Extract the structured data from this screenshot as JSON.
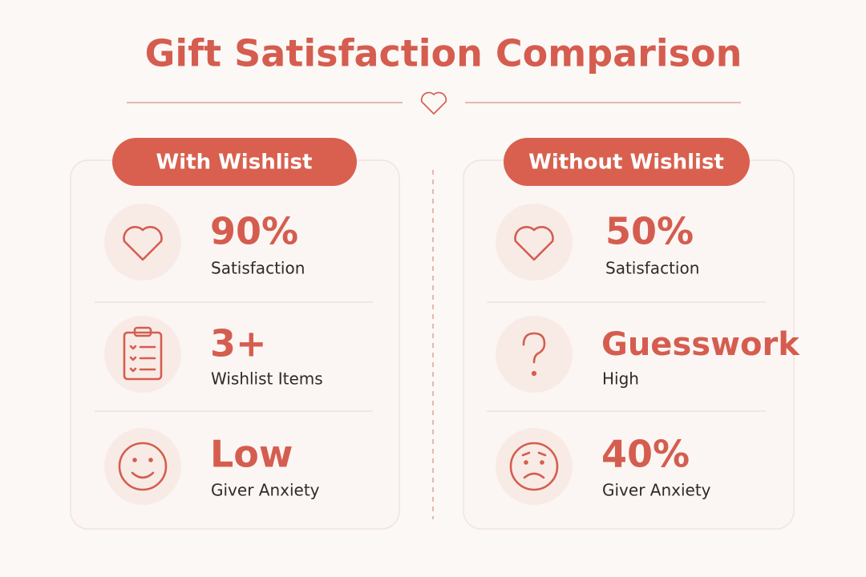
{
  "header": {
    "title": "Gift Satisfaction Comparison"
  },
  "panels": [
    {
      "title": "With Wishlist",
      "rows": [
        {
          "value": "90%",
          "label": "Satisfaction"
        },
        {
          "value": "3+",
          "label": "Wishlist Items"
        },
        {
          "value": "Low",
          "label": "Giver Anxiety"
        }
      ]
    },
    {
      "title": "Without Wishlist",
      "rows": [
        {
          "value": "50%",
          "label": "Satisfaction"
        },
        {
          "value": "Guesswork",
          "label": "High"
        },
        {
          "value": "40%",
          "label": "Giver Anxiety"
        }
      ]
    }
  ]
}
